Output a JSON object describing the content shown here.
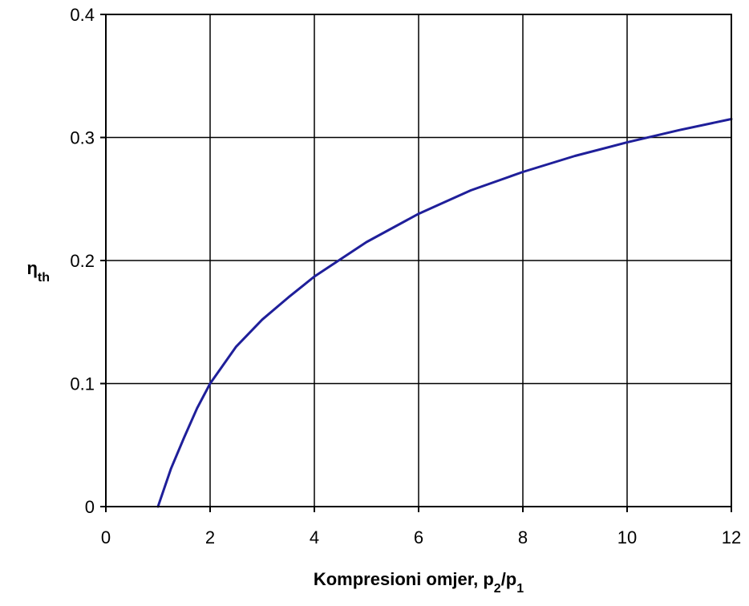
{
  "chart_data": {
    "type": "line",
    "title": "",
    "xlabel": "Kompresioni omjer, p",
    "xlabel_parts": [
      {
        "text": "Kompresioni omjer, p"
      },
      {
        "text": "2",
        "sub": true
      },
      {
        "text": "/p"
      },
      {
        "text": "1",
        "sub": true
      }
    ],
    "ylabel": "η",
    "ylabel_parts": [
      {
        "text": "η"
      },
      {
        "text": "th",
        "sub": true
      }
    ],
    "xlim": [
      0,
      12
    ],
    "ylim": [
      0,
      0.4
    ],
    "xticks": [
      0,
      2,
      4,
      6,
      8,
      10,
      12
    ],
    "yticks": [
      0,
      0.1,
      0.2,
      0.3,
      0.4
    ],
    "xtick_labels": [
      "0",
      "2",
      "4",
      "6",
      "8",
      "10",
      "12"
    ],
    "ytick_labels": [
      "0",
      "0.1",
      "0.2",
      "0.3",
      "0.4"
    ],
    "grid": true,
    "legend": "none",
    "series": [
      {
        "color": "#1f1f9a",
        "x": [
          1,
          1.25,
          1.5,
          1.75,
          2,
          2.5,
          3,
          3.5,
          4,
          5,
          6,
          7,
          8,
          9,
          10,
          11,
          12
        ],
        "y": [
          0,
          0.031,
          0.056,
          0.08,
          0.1,
          0.13,
          0.152,
          0.17,
          0.187,
          0.215,
          0.238,
          0.257,
          0.272,
          0.285,
          0.296,
          0.306,
          0.315
        ]
      }
    ]
  }
}
